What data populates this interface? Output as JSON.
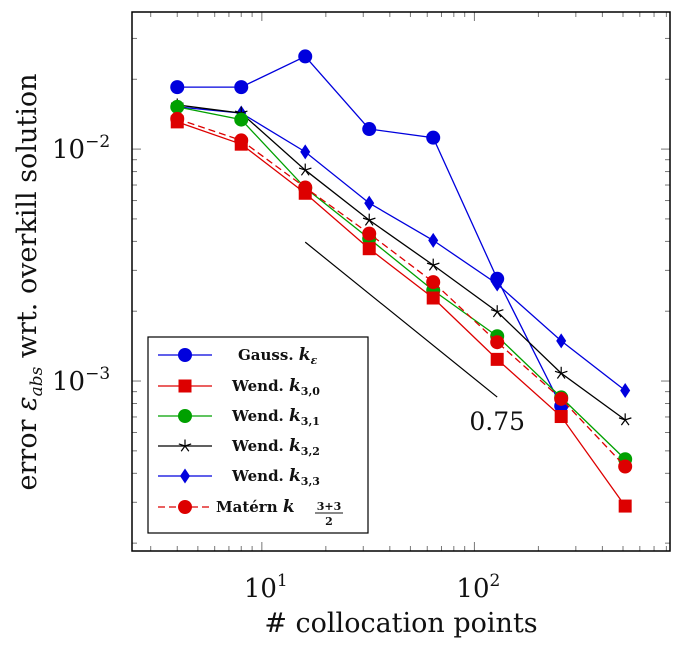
{
  "chart_data": {
    "type": "line",
    "title": "",
    "xlabel": "# collocation points",
    "ylabel_parts": {
      "prefix": "error ",
      "symbol": "ε",
      "subscript": "abs",
      "suffix": " wrt. overkill solution"
    },
    "xscale": "log",
    "yscale": "log",
    "xlim": [
      2.45,
      832
    ],
    "ylim": [
      0.000185,
      0.039
    ],
    "grid": false,
    "legend_position": "bottom-left",
    "x_ticks": [
      {
        "base": "10",
        "exp": "1",
        "value": 10
      },
      {
        "base": "10",
        "exp": "2",
        "value": 100
      }
    ],
    "y_ticks": [
      {
        "base": "10",
        "exp": "−2",
        "value": 0.01
      },
      {
        "base": "10",
        "exp": "−3",
        "value": 0.001
      }
    ],
    "x": [
      4,
      8,
      16,
      32,
      64,
      128,
      256,
      512
    ],
    "series": [
      {
        "name": "Gauss. k_ε",
        "label_main": "Gauss. ",
        "label_k": "k",
        "label_sub": "ε",
        "color": "#0000dd",
        "marker": "circle",
        "dash": false,
        "values": [
          0.0185,
          0.0185,
          0.0251,
          0.0122,
          0.0112,
          0.00276,
          0.00078,
          null
        ]
      },
      {
        "name": "Wend. k_{3,0}",
        "label_main": "Wend. ",
        "label_k": "k",
        "label_sub": "3,0",
        "color": "#dd0000",
        "marker": "square",
        "dash": false,
        "values": [
          0.0131,
          0.0105,
          0.00645,
          0.00372,
          0.00228,
          0.00124,
          0.000703,
          0.000289
        ]
      },
      {
        "name": "Wend. k_{3,1}",
        "label_main": "Wend. ",
        "label_k": "k",
        "label_sub": "3,1",
        "color": "#00a000",
        "marker": "circle",
        "dash": false,
        "values": [
          0.0152,
          0.0134,
          0.0068,
          0.00411,
          0.00246,
          0.00156,
          0.00085,
          0.00046
        ]
      },
      {
        "name": "Wend. k_{3,2}",
        "label_main": "Wend. ",
        "label_k": "k",
        "label_sub": "3,2",
        "color": "#000000",
        "marker": "star",
        "dash": false,
        "values": [
          0.0155,
          0.0143,
          0.00812,
          0.00494,
          0.00316,
          0.00199,
          0.00108,
          0.00068
        ]
      },
      {
        "name": "Wend. k_{3,3}",
        "label_main": "Wend. ",
        "label_k": "k",
        "label_sub": "3,3",
        "color": "#0000dd",
        "marker": "diamond",
        "dash": false,
        "values": [
          0.0152,
          0.0143,
          0.00973,
          0.00585,
          0.00404,
          0.00262,
          0.00149,
          0.00091
        ]
      },
      {
        "name": "Matérn k_{(3+3)/2}",
        "label_main": "Matérn ",
        "label_k": "k",
        "label_sub": "3+3",
        "label_sub_den": "2",
        "color": "#dd0000",
        "marker": "circle",
        "dash": true,
        "values": [
          0.0135,
          0.0109,
          0.00683,
          0.00432,
          0.00267,
          0.00147,
          0.000838,
          0.000428
        ]
      }
    ],
    "annotations": [
      {
        "type": "slope-line",
        "x": [
          16,
          128
        ],
        "y": [
          0.00397,
          0.000853
        ],
        "label": "0.75",
        "color": "#000000"
      }
    ]
  }
}
